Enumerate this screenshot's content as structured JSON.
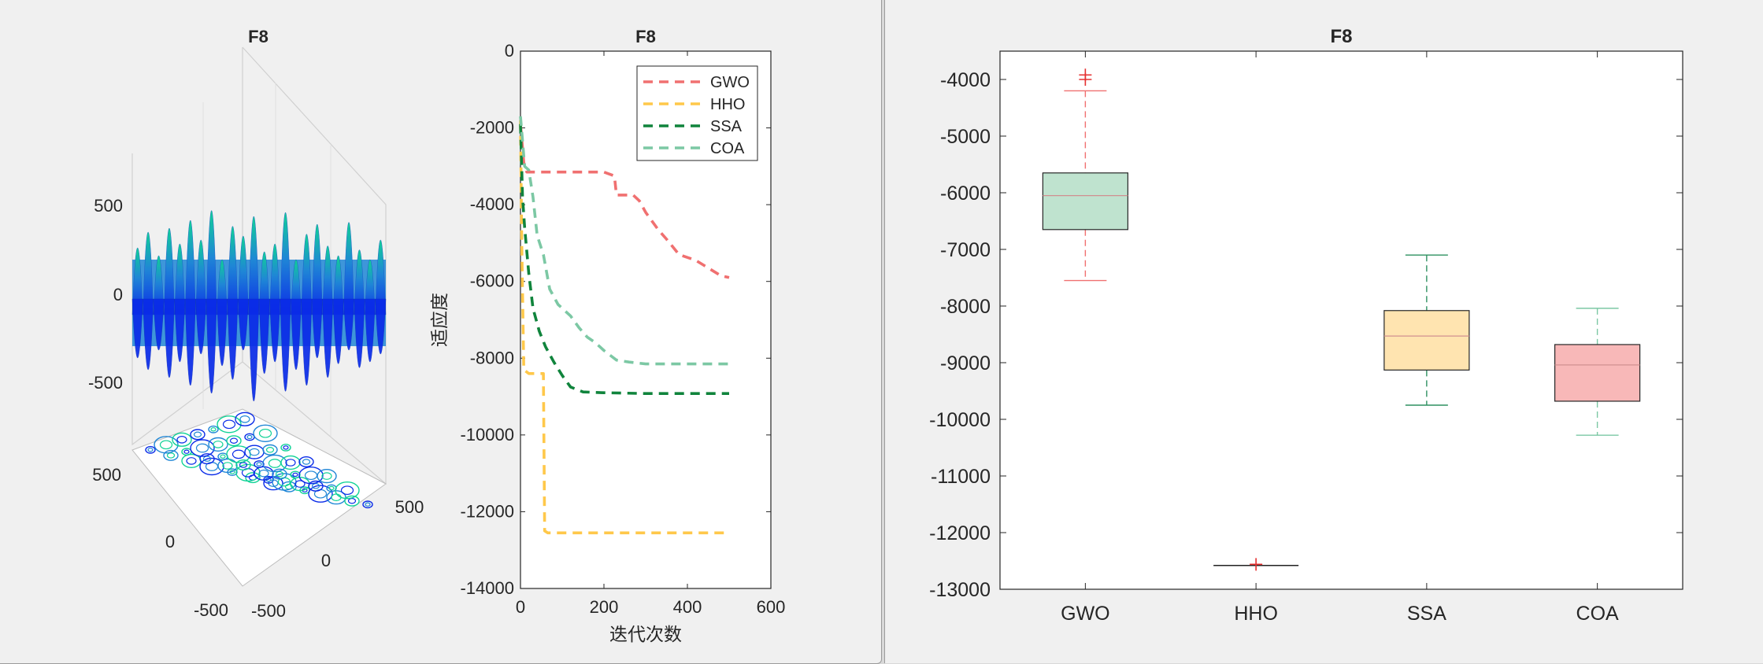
{
  "chart_data": [
    {
      "type": "surface3d",
      "title": "F8",
      "z_ticks": [
        "500",
        "0",
        "-500"
      ],
      "x_ticks": [
        "500",
        "0",
        "-500"
      ],
      "y_ticks": [
        "-500",
        "0",
        "500"
      ],
      "colors": {
        "low": "#0a2be8",
        "mid": "#1f86d6",
        "high": "#10d296"
      }
    },
    {
      "type": "line",
      "title": "F8",
      "xlabel": "迭代次数",
      "ylabel": "适应度",
      "xlim": [
        0,
        600
      ],
      "ylim": [
        -14000,
        0
      ],
      "x_ticks": [
        0,
        200,
        400,
        600
      ],
      "y_ticks": [
        0,
        -2000,
        -4000,
        -6000,
        -8000,
        -10000,
        -12000,
        -14000
      ],
      "legend_position": "top-right",
      "series": [
        {
          "name": "GWO",
          "color": "#f07070",
          "points": [
            [
              0,
              -1900
            ],
            [
              8,
              -2900
            ],
            [
              15,
              -3150
            ],
            [
              100,
              -3150
            ],
            [
              200,
              -3150
            ],
            [
              225,
              -3250
            ],
            [
              230,
              -3750
            ],
            [
              270,
              -3750
            ],
            [
              285,
              -3900
            ],
            [
              300,
              -4200
            ],
            [
              330,
              -4650
            ],
            [
              350,
              -4900
            ],
            [
              380,
              -5300
            ],
            [
              420,
              -5450
            ],
            [
              450,
              -5650
            ],
            [
              480,
              -5850
            ],
            [
              500,
              -5900
            ]
          ]
        },
        {
          "name": "HHO",
          "color": "#ffc84a",
          "points": [
            [
              0,
              -1800
            ],
            [
              3,
              -5000
            ],
            [
              8,
              -8300
            ],
            [
              20,
              -8400
            ],
            [
              55,
              -8400
            ],
            [
              58,
              -12500
            ],
            [
              65,
              -12550
            ],
            [
              200,
              -12550
            ],
            [
              300,
              -12550
            ],
            [
              400,
              -12550
            ],
            [
              500,
              -12550
            ]
          ]
        },
        {
          "name": "SSA",
          "color": "#10843c",
          "points": [
            [
              0,
              -1900
            ],
            [
              5,
              -3800
            ],
            [
              10,
              -4600
            ],
            [
              20,
              -5800
            ],
            [
              30,
              -6700
            ],
            [
              45,
              -7300
            ],
            [
              60,
              -7700
            ],
            [
              80,
              -8100
            ],
            [
              100,
              -8450
            ],
            [
              120,
              -8750
            ],
            [
              150,
              -8880
            ],
            [
              200,
              -8900
            ],
            [
              300,
              -8920
            ],
            [
              400,
              -8920
            ],
            [
              500,
              -8920
            ]
          ]
        },
        {
          "name": "COA",
          "color": "#7cc8a4",
          "points": [
            [
              0,
              -1700
            ],
            [
              10,
              -3000
            ],
            [
              20,
              -3100
            ],
            [
              30,
              -3800
            ],
            [
              40,
              -4800
            ],
            [
              55,
              -5300
            ],
            [
              70,
              -6200
            ],
            [
              90,
              -6600
            ],
            [
              120,
              -6900
            ],
            [
              140,
              -7200
            ],
            [
              160,
              -7450
            ],
            [
              180,
              -7600
            ],
            [
              200,
              -7800
            ],
            [
              230,
              -8050
            ],
            [
              260,
              -8100
            ],
            [
              300,
              -8150
            ],
            [
              400,
              -8150
            ],
            [
              500,
              -8150
            ]
          ]
        }
      ]
    },
    {
      "type": "box",
      "title": "F8",
      "categories": [
        "GWO",
        "HHO",
        "SSA",
        "COA"
      ],
      "ylim": [
        -13000,
        -3500
      ],
      "y_ticks": [
        -4000,
        -5000,
        -6000,
        -7000,
        -8000,
        -9000,
        -10000,
        -11000,
        -12000,
        -13000
      ],
      "boxes": [
        {
          "name": "GWO",
          "whisker_low": -7550,
          "q1": -6650,
          "median": -6050,
          "q3": -5650,
          "whisker_high": -4200,
          "outliers": [
            -4000,
            -3920
          ],
          "fill": "#bfe3cf",
          "line": "#f07070"
        },
        {
          "name": "HHO",
          "whisker_low": -12580,
          "q1": -12580,
          "median": -12580,
          "q3": -12580,
          "whisker_high": -12580,
          "outliers": [
            -12560
          ],
          "fill": "#ffe4a8",
          "line": "#222222"
        },
        {
          "name": "SSA",
          "whisker_low": -9750,
          "q1": -9130,
          "median": -8530,
          "q3": -8080,
          "whisker_high": -7100,
          "outliers": [],
          "fill": "#ffe4b0",
          "line": "#2e9060"
        },
        {
          "name": "COA",
          "whisker_low": -10280,
          "q1": -9680,
          "median": -9040,
          "q3": -8680,
          "whisker_high": -8040,
          "outliers": [],
          "fill": "#f8b8b8",
          "line": "#7cc8a4"
        }
      ]
    }
  ]
}
